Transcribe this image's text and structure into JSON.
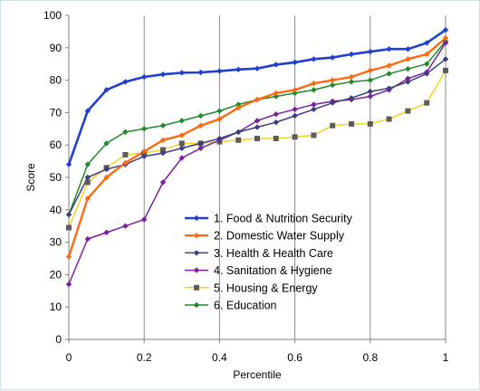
{
  "chart_data": {
    "type": "line",
    "xlabel": "Percentile",
    "ylabel": "Score",
    "xlim": [
      0,
      1
    ],
    "ylim": [
      0,
      100
    ],
    "x_ticks": [
      "0",
      "0.2",
      "0.4",
      "0.6",
      "0.8",
      "1"
    ],
    "y_ticks": [
      "0",
      "10",
      "20",
      "30",
      "40",
      "50",
      "60",
      "70",
      "80",
      "90",
      "100"
    ],
    "grid": "vertical",
    "legend_position": "bottom-center",
    "x": [
      0,
      0.05,
      0.1,
      0.15,
      0.2,
      0.25,
      0.3,
      0.35,
      0.4,
      0.45,
      0.5,
      0.55,
      0.6,
      0.65,
      0.7,
      0.75,
      0.8,
      0.85,
      0.9,
      0.95,
      1.0
    ],
    "series": [
      {
        "name": "1. Food & Nutrition Security",
        "color": "#1f3fd4",
        "marker": "diamond",
        "values": [
          54,
          70.5,
          77,
          79.5,
          81,
          81.8,
          82.3,
          82.4,
          82.8,
          83.3,
          83.6,
          84.8,
          85.5,
          86.5,
          87,
          88,
          88.8,
          89.6,
          89.6,
          91.5,
          95.5
        ]
      },
      {
        "name": "2. Domestic Water Supply",
        "color": "#ff6a10",
        "marker": "diamond",
        "values": [
          25.5,
          43.5,
          50,
          54.5,
          58,
          61.5,
          63,
          66,
          68,
          71.5,
          74,
          76,
          77,
          79,
          80,
          81,
          83,
          84.5,
          86.5,
          88,
          93
        ]
      },
      {
        "name": "3. Health & Health Care",
        "color": "#3e3e7e",
        "marker": "diamond",
        "values": [
          38.5,
          50,
          52.5,
          54,
          56.5,
          57.5,
          59,
          60.5,
          62,
          64,
          65.5,
          67,
          69,
          71,
          73,
          74.5,
          76.5,
          77.5,
          79.5,
          82,
          86.5
        ]
      },
      {
        "name": "4. Sanitation & Hygiene",
        "color": "#7a1fa0",
        "marker": "diamond",
        "values": [
          17,
          31,
          33,
          35,
          37,
          48.5,
          56,
          59,
          61.5,
          64,
          67.5,
          69.5,
          71,
          72.5,
          73.5,
          74,
          75,
          77,
          80.5,
          82.5,
          91.5
        ]
      },
      {
        "name": "5. Housing & Energy",
        "color": "#f5d41c",
        "marker": "square",
        "markerColor": "#5c5c5c",
        "values": [
          34.5,
          48.5,
          53,
          57,
          57.5,
          58.5,
          60.5,
          60.5,
          61,
          61.5,
          62,
          62,
          62.5,
          63,
          66,
          66.5,
          66.5,
          68,
          70.5,
          73,
          83
        ]
      },
      {
        "name": "6. Education",
        "color": "#1f8a2c",
        "marker": "diamond",
        "values": [
          38.5,
          54,
          60.5,
          64,
          65,
          66,
          67.5,
          69,
          70.5,
          72.5,
          74,
          75,
          76,
          77,
          78.5,
          79.5,
          80,
          82,
          83.5,
          85,
          92
        ]
      }
    ]
  }
}
